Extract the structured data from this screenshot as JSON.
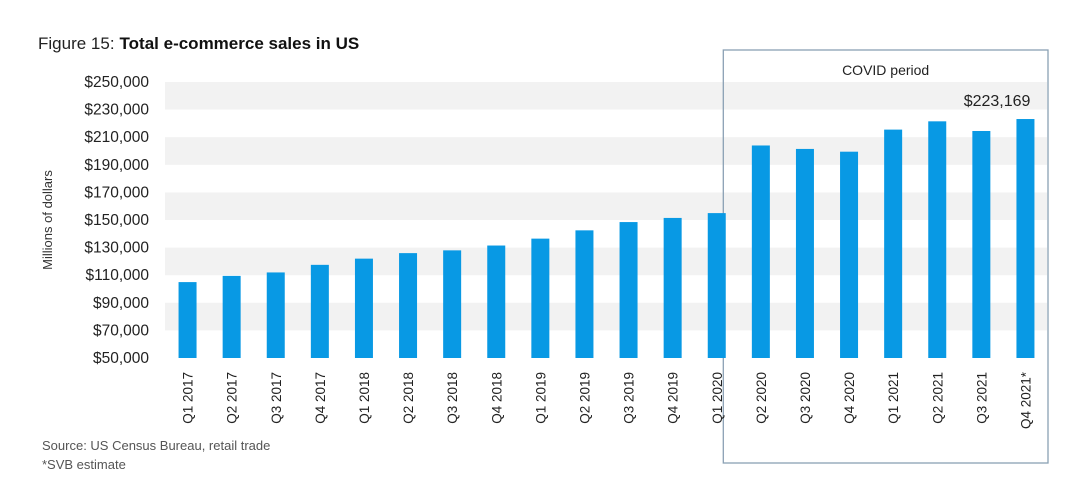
{
  "figure": {
    "label": "Figure 15:",
    "title": "Total e-commerce sales in US"
  },
  "chart_data": {
    "type": "bar",
    "categories": [
      "Q1 2017",
      "Q2 2017",
      "Q3 2017",
      "Q4 2017",
      "Q1 2018",
      "Q2 2018",
      "Q3 2018",
      "Q4 2018",
      "Q1 2019",
      "Q2 2019",
      "Q3 2019",
      "Q4 2019",
      "Q1 2020",
      "Q2 2020",
      "Q3 2020",
      "Q4 2020",
      "Q1 2021",
      "Q2 2021",
      "Q3 2021",
      "Q4 2021*"
    ],
    "values": [
      105000,
      109500,
      112000,
      117500,
      122000,
      126000,
      128000,
      131500,
      136500,
      142500,
      148500,
      151500,
      155000,
      204000,
      201500,
      199500,
      215500,
      221500,
      214500,
      223169
    ],
    "ylabel": "Millions of dollars",
    "ylim": [
      50000,
      250000
    ],
    "yticks": [
      "$50,000",
      "$70,000",
      "$90,000",
      "$110,000",
      "$130,000",
      "$150,000",
      "$170,000",
      "$190,000",
      "$210,000",
      "$230,000",
      "$250,000"
    ],
    "bar_color": "#0899e4",
    "band_color": "#f2f2f2",
    "highlight": {
      "label": "COVID period",
      "from": "Q2 2020",
      "to": "Q4 2021*",
      "border_color": "#8aa0b4"
    },
    "annotation": {
      "category": "Q4 2021*",
      "text": "$223,169"
    }
  },
  "footnotes": {
    "source": "Source: US Census Bureau, retail trade",
    "note": "*SVB estimate"
  }
}
